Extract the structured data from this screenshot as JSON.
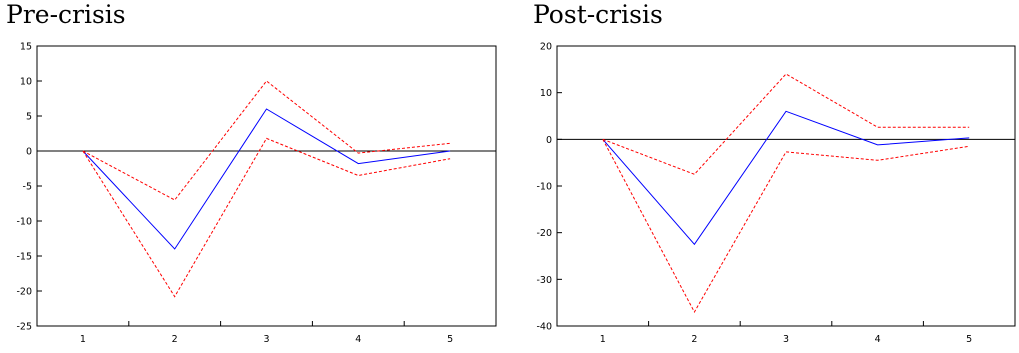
{
  "chart_data": [
    {
      "type": "line",
      "title": "Pre-crisis",
      "categories": [
        "1",
        "2",
        "3",
        "4",
        "5"
      ],
      "ylim": [
        -25,
        15
      ],
      "yticks": [
        15,
        10,
        5,
        0,
        -5,
        -10,
        -15,
        -20,
        -25
      ],
      "ytick_labels": [
        "15",
        "10",
        "5",
        "0",
        "-5",
        "-10",
        "-15",
        "-20",
        "-25"
      ],
      "zero_line": true,
      "grid": false,
      "series": [
        {
          "role": "response",
          "color": "#0000ff",
          "style": "solid",
          "values": [
            0,
            -14,
            6,
            -1.8,
            0
          ]
        },
        {
          "role": "upper band",
          "color": "#ff0000",
          "style": "dashed",
          "values": [
            0,
            -7,
            10,
            -0.3,
            1.1
          ]
        },
        {
          "role": "lower band",
          "color": "#ff0000",
          "style": "dashed",
          "values": [
            0,
            -20.8,
            1.8,
            -3.5,
            -1.1
          ]
        }
      ]
    },
    {
      "type": "line",
      "title": "Post-crisis",
      "categories": [
        "1",
        "2",
        "3",
        "4",
        "5"
      ],
      "ylim": [
        -40,
        20
      ],
      "yticks": [
        20,
        10,
        0,
        -10,
        -20,
        -30,
        -40
      ],
      "ytick_labels": [
        "20",
        "10",
        "0",
        "-10",
        "-20",
        "-30",
        "-40"
      ],
      "zero_line": true,
      "grid": false,
      "series": [
        {
          "role": "response",
          "color": "#0000ff",
          "style": "solid",
          "values": [
            0,
            -22.5,
            6,
            -1.2,
            0.3
          ]
        },
        {
          "role": "upper band",
          "color": "#ff0000",
          "style": "dashed",
          "values": [
            0,
            -7.5,
            14,
            2.6,
            2.6
          ]
        },
        {
          "role": "lower band",
          "color": "#ff0000",
          "style": "dashed",
          "values": [
            0,
            -37,
            -2.7,
            -4.5,
            -1.5
          ]
        }
      ]
    }
  ]
}
